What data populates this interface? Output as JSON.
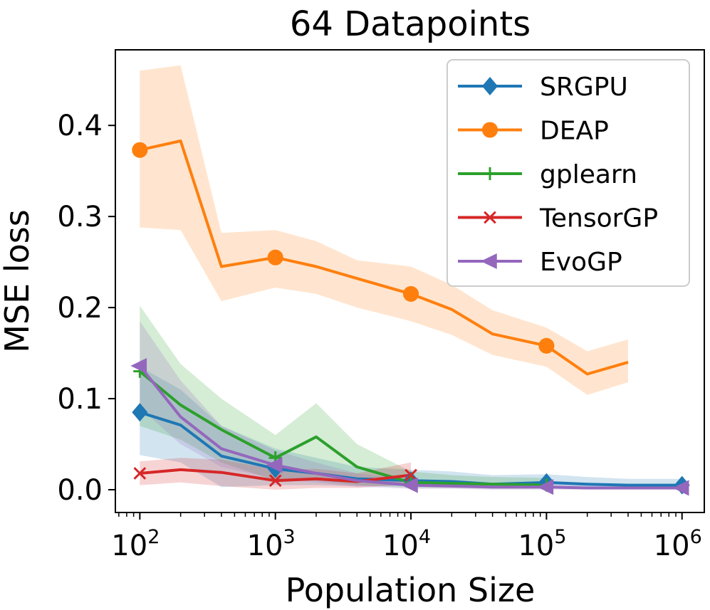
{
  "chart_data": {
    "type": "line",
    "title": "64 Datapoints",
    "xlabel": "Population Size",
    "ylabel": "MSE loss",
    "xscale": "log",
    "xlim": [
      66,
      1460000
    ],
    "ylim": [
      -0.025,
      0.483
    ],
    "x_ticks": [
      100,
      1000,
      10000,
      100000,
      1000000
    ],
    "x_tick_labels": [
      {
        "base": "10",
        "exp": "2"
      },
      {
        "base": "10",
        "exp": "3"
      },
      {
        "base": "10",
        "exp": "4"
      },
      {
        "base": "10",
        "exp": "5"
      },
      {
        "base": "10",
        "exp": "6"
      }
    ],
    "y_ticks": [
      0.0,
      0.1,
      0.2,
      0.3,
      0.4
    ],
    "y_tick_labels": [
      "0.0",
      "0.1",
      "0.2",
      "0.3",
      "0.4"
    ],
    "legend_position": "top-right",
    "grid": false,
    "series": [
      {
        "name": "SRGPU",
        "color": "#1f77b4",
        "marker": "diamond",
        "x": [
          100,
          200,
          400,
          1000,
          2000,
          4000,
          10000,
          20000,
          40000,
          100000,
          200000,
          400000,
          1000000
        ],
        "y": [
          0.085,
          0.071,
          0.037,
          0.023,
          0.018,
          0.012,
          0.01,
          0.009,
          0.006,
          0.008,
          0.006,
          0.005,
          0.005
        ],
        "lower": [
          0.038,
          0.03,
          0.003,
          0.005,
          0.005,
          0.004,
          0.004,
          0.004,
          0.002,
          0.002,
          0.002,
          0.001,
          0.001
        ],
        "upper": [
          0.135,
          0.11,
          0.07,
          0.045,
          0.035,
          0.025,
          0.022,
          0.02,
          0.016,
          0.017,
          0.014,
          0.012,
          0.012
        ],
        "marker_x": [
          100,
          1000,
          10000,
          100000,
          1000000
        ],
        "marker_y": [
          0.085,
          0.023,
          0.01,
          0.008,
          0.005
        ]
      },
      {
        "name": "DEAP",
        "color": "#ff7f0e",
        "marker": "circle",
        "x": [
          100,
          200,
          400,
          1000,
          2000,
          4000,
          10000,
          20000,
          40000,
          100000,
          200000,
          400000
        ],
        "y": [
          0.373,
          0.383,
          0.245,
          0.255,
          0.245,
          0.232,
          0.215,
          0.198,
          0.171,
          0.158,
          0.127,
          0.14
        ],
        "lower": [
          0.288,
          0.285,
          0.207,
          0.222,
          0.215,
          0.2,
          0.185,
          0.17,
          0.148,
          0.135,
          0.104,
          0.118
        ],
        "upper": [
          0.46,
          0.466,
          0.282,
          0.285,
          0.273,
          0.252,
          0.245,
          0.225,
          0.197,
          0.178,
          0.152,
          0.165
        ],
        "marker_x": [
          100,
          1000,
          10000,
          100000
        ],
        "marker_y": [
          0.373,
          0.255,
          0.215,
          0.158
        ]
      },
      {
        "name": "gplearn",
        "color": "#2ca02c",
        "marker": "plus",
        "x": [
          100,
          200,
          400,
          1000,
          2000,
          4000,
          10000,
          20000,
          40000,
          100000
        ],
        "y": [
          0.13,
          0.093,
          0.066,
          0.035,
          0.058,
          0.025,
          0.008,
          0.007,
          0.006,
          0.005
        ],
        "lower": [
          0.07,
          0.055,
          0.03,
          0.01,
          0.01,
          0.005,
          0.002,
          0.002,
          0.001,
          0.001
        ],
        "upper": [
          0.202,
          0.138,
          0.1,
          0.06,
          0.095,
          0.05,
          0.02,
          0.016,
          0.014,
          0.013
        ],
        "marker_x": [
          100,
          1000,
          10000,
          100000
        ],
        "marker_y": [
          0.13,
          0.035,
          0.008,
          0.005
        ]
      },
      {
        "name": "TensorGP",
        "color": "#d62728",
        "marker": "x",
        "x": [
          100,
          200,
          400,
          1000,
          2000,
          4000,
          10000
        ],
        "y": [
          0.018,
          0.022,
          0.019,
          0.01,
          0.012,
          0.009,
          0.016
        ],
        "lower": [
          0.005,
          0.008,
          0.004,
          0.0,
          0.002,
          0.002,
          0.006
        ],
        "upper": [
          0.031,
          0.035,
          0.033,
          0.022,
          0.023,
          0.018,
          0.03
        ],
        "marker_x": [
          100,
          1000,
          10000
        ],
        "marker_y": [
          0.018,
          0.01,
          0.016
        ]
      },
      {
        "name": "EvoGP",
        "color": "#9467bd",
        "marker": "triangle-left",
        "x": [
          100,
          200,
          400,
          1000,
          2000,
          4000,
          10000,
          20000,
          40000,
          100000,
          200000,
          400000,
          1000000
        ],
        "y": [
          0.136,
          0.08,
          0.045,
          0.027,
          0.018,
          0.01,
          0.005,
          0.004,
          0.003,
          0.003,
          0.002,
          0.002,
          0.002
        ],
        "lower": [
          0.09,
          0.05,
          0.025,
          0.012,
          0.008,
          0.003,
          0.001,
          0.001,
          0.0,
          0.0,
          0.0,
          0.0,
          0.0
        ],
        "upper": [
          0.185,
          0.12,
          0.07,
          0.043,
          0.03,
          0.018,
          0.011,
          0.009,
          0.007,
          0.007,
          0.006,
          0.006,
          0.006
        ],
        "marker_x": [
          100,
          1000,
          10000,
          100000,
          1000000
        ],
        "marker_y": [
          0.136,
          0.027,
          0.005,
          0.003,
          0.002
        ]
      }
    ]
  }
}
